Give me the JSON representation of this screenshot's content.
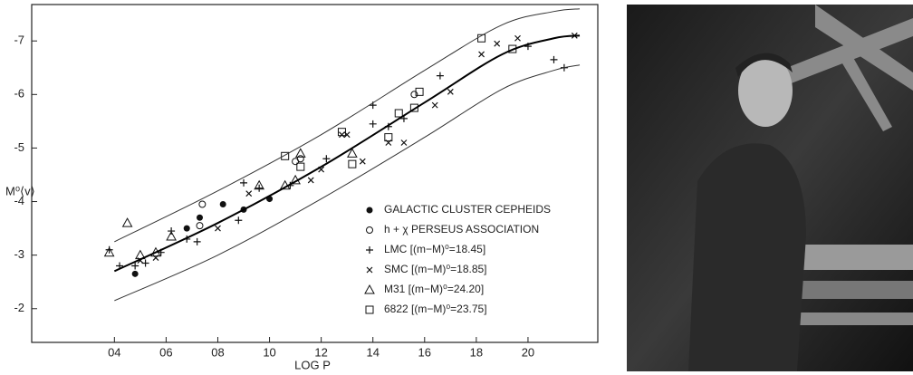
{
  "chart_data": {
    "type": "scatter",
    "xlabel": "LOG P",
    "ylabel": "M⁰⟨v⟩",
    "xlim": [
      0.08,
      2.27
    ],
    "ylim": [
      -1.37,
      -7.68
    ],
    "xticks": [
      {
        "value": 0.4,
        "label": "04"
      },
      {
        "value": 0.6,
        "label": "06"
      },
      {
        "value": 0.8,
        "label": "08"
      },
      {
        "value": 1.0,
        "label": "10"
      },
      {
        "value": 1.2,
        "label": "12"
      },
      {
        "value": 1.4,
        "label": "14"
      },
      {
        "value": 1.6,
        "label": "16"
      },
      {
        "value": 1.8,
        "label": "18"
      },
      {
        "value": 2.0,
        "label": "20"
      }
    ],
    "yticks": [
      -7,
      -6,
      -5,
      -4,
      -3,
      -2
    ],
    "series": [
      {
        "name": "GALACTIC CLUSTER CEPHEIDS",
        "marker": "filled-circle",
        "color": "#111",
        "x": [
          0.48,
          0.68,
          0.73,
          0.82,
          0.9,
          1.0
        ],
        "values": [
          -2.65,
          -3.5,
          -3.7,
          -3.95,
          -3.85,
          -4.05
        ]
      },
      {
        "name": "h + χ PERSEUS ASSOCIATION",
        "marker": "circle",
        "color": "#111",
        "x": [
          0.74,
          0.73,
          1.1,
          1.12,
          1.56
        ],
        "values": [
          -3.95,
          -3.55,
          -4.75,
          -4.8,
          -6.0
        ]
      },
      {
        "name": "LMC [(m−M)⁰=18.45]",
        "marker": "plus",
        "color": "#111",
        "x": [
          0.38,
          0.42,
          0.48,
          0.52,
          0.58,
          0.62,
          0.68,
          0.72,
          0.88,
          0.9,
          0.96,
          1.08,
          1.22,
          1.4,
          1.4,
          1.46,
          1.52,
          1.66,
          2.0,
          2.1,
          2.14
        ],
        "values": [
          -3.1,
          -2.8,
          -2.8,
          -2.85,
          -3.05,
          -3.45,
          -3.3,
          -3.25,
          -3.65,
          -4.35,
          -4.25,
          -4.3,
          -4.8,
          -5.8,
          -5.45,
          -5.4,
          -5.55,
          -6.35,
          -6.9,
          -6.65,
          -6.5
        ]
      },
      {
        "name": "SMC [(m−M)⁰=18.85]",
        "marker": "x",
        "color": "#111",
        "x": [
          0.5,
          0.56,
          0.8,
          0.92,
          1.16,
          1.2,
          1.28,
          1.3,
          1.36,
          1.46,
          1.52,
          1.64,
          1.7,
          1.82,
          1.88,
          1.96,
          2.18
        ],
        "values": [
          -2.9,
          -2.95,
          -3.5,
          -4.15,
          -4.4,
          -4.6,
          -5.25,
          -5.25,
          -4.75,
          -5.1,
          -5.1,
          -5.8,
          -6.05,
          -6.75,
          -6.95,
          -7.05,
          -7.1
        ]
      },
      {
        "name": "M31 [(m−M)⁰=24.20]",
        "marker": "triangle",
        "color": "#111",
        "x": [
          0.38,
          0.45,
          0.5,
          0.56,
          0.62,
          0.96,
          1.06,
          1.1,
          1.12,
          1.32
        ],
        "values": [
          -3.05,
          -3.6,
          -3.0,
          -3.05,
          -3.35,
          -4.3,
          -4.3,
          -4.4,
          -4.9,
          -4.9
        ]
      },
      {
        "name": "6822 [(m−M)⁰=23.75]",
        "marker": "square",
        "color": "#111",
        "x": [
          1.06,
          1.12,
          1.28,
          1.32,
          1.46,
          1.5,
          1.56,
          1.58,
          1.82,
          1.94
        ],
        "values": [
          -4.85,
          -4.65,
          -5.3,
          -4.7,
          -5.2,
          -5.65,
          -5.75,
          -6.05,
          -7.05,
          -6.85
        ]
      },
      {
        "marker": "line",
        "color": "#000",
        "width": 2,
        "x": [
          0.4,
          0.8,
          1.2,
          1.6,
          1.9,
          2.1,
          2.2
        ],
        "values": [
          -2.7,
          -3.6,
          -4.65,
          -5.85,
          -6.75,
          -7.05,
          -7.1
        ]
      },
      {
        "marker": "line",
        "color": "#333",
        "width": 1,
        "x": [
          0.4,
          0.8,
          1.2,
          1.6,
          1.9,
          2.1,
          2.2
        ],
        "values": [
          -3.25,
          -4.2,
          -5.25,
          -6.45,
          -7.3,
          -7.55,
          -7.6
        ]
      },
      {
        "marker": "line",
        "color": "#333",
        "width": 1,
        "x": [
          0.4,
          0.8,
          1.2,
          1.6,
          1.9,
          2.1,
          2.2
        ],
        "values": [
          -2.15,
          -3.0,
          -4.05,
          -5.2,
          -6.1,
          -6.45,
          -6.55
        ]
      }
    ]
  }
}
